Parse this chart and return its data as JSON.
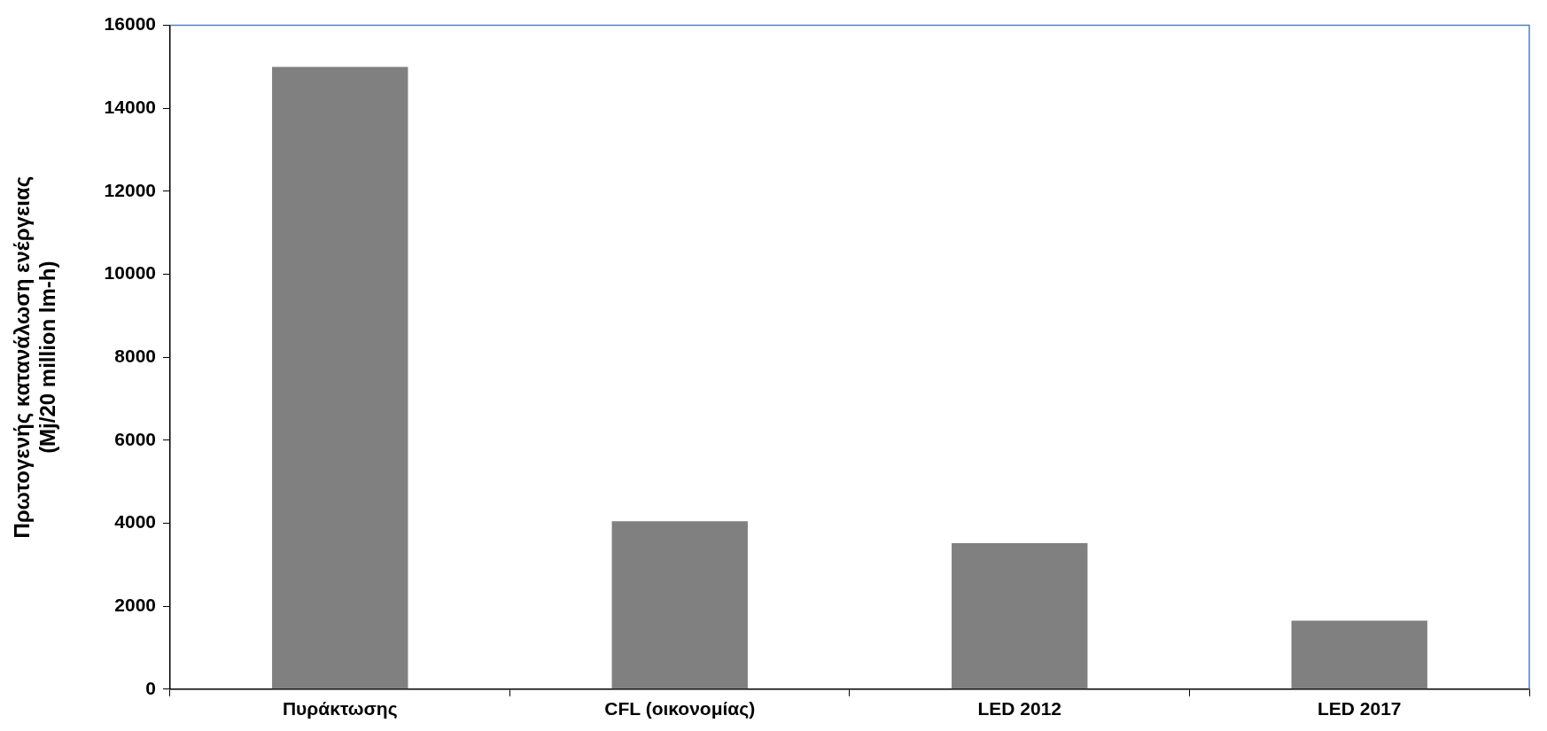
{
  "chart_data": {
    "type": "bar",
    "ylabel": "Πρωτογενής κατανάλωση ενέργειας\n(Mj/20 million lm-h)",
    "categories": [
      "Πυράκτωσης",
      "CFL (οικονομίας)",
      "LED 2012",
      "LED 2017"
    ],
    "values": [
      15000,
      4050,
      3520,
      1650
    ],
    "color": "#808080",
    "ylim": [
      0,
      16000
    ],
    "yticks": [
      0,
      2000,
      4000,
      6000,
      8000,
      10000,
      12000,
      14000,
      16000
    ],
    "grid": false,
    "legend": false
  }
}
